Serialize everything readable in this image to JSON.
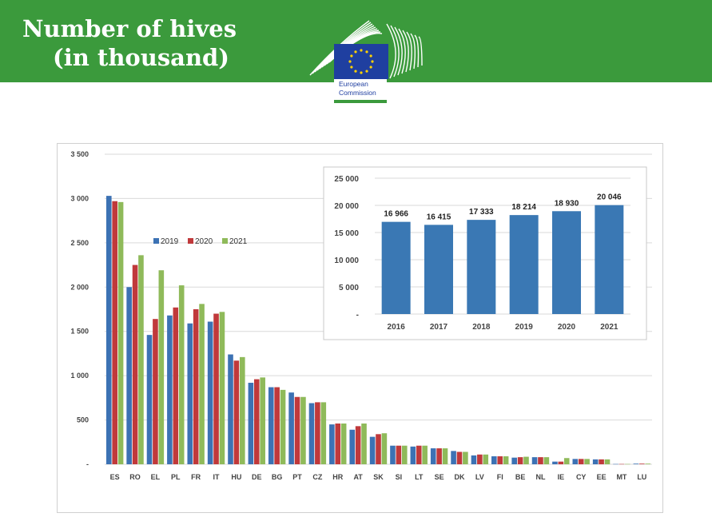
{
  "header": {
    "title_line1": "Number of hives",
    "title_line2": "(in thousand)",
    "logo_text_line1": "European",
    "logo_text_line2": "Commission"
  },
  "colors": {
    "banner": "#3b9a3c",
    "s2019": "#3c72b4",
    "s2020": "#c0393b",
    "s2021": "#8fba5a",
    "inset_bar": "#3a78b4",
    "eu_blue": "#1f3fa0",
    "eu_star": "#ffd200"
  },
  "chart_data": [
    {
      "type": "bar",
      "categories": [
        "ES",
        "RO",
        "EL",
        "PL",
        "FR",
        "IT",
        "HU",
        "DE",
        "BG",
        "PT",
        "CZ",
        "HR",
        "AT",
        "SK",
        "SI",
        "LT",
        "SE",
        "DK",
        "LV",
        "FI",
        "BE",
        "NL",
        "IE",
        "CY",
        "EE",
        "MT",
        "LU"
      ],
      "series": [
        {
          "name": "2019",
          "values": [
            3030,
            2000,
            1460,
            1680,
            1590,
            1610,
            1240,
            920,
            870,
            810,
            690,
            450,
            390,
            310,
            210,
            200,
            180,
            150,
            100,
            90,
            75,
            80,
            30,
            60,
            55,
            3,
            7
          ]
        },
        {
          "name": "2020",
          "values": [
            2970,
            2250,
            1640,
            1770,
            1750,
            1700,
            1170,
            960,
            870,
            760,
            700,
            460,
            430,
            340,
            210,
            210,
            180,
            140,
            110,
            90,
            80,
            80,
            30,
            60,
            55,
            3,
            7
          ]
        },
        {
          "name": "2021",
          "values": [
            2960,
            2360,
            2190,
            2020,
            1810,
            1720,
            1210,
            980,
            840,
            760,
            700,
            460,
            460,
            350,
            210,
            210,
            180,
            140,
            110,
            90,
            85,
            80,
            70,
            60,
            55,
            3,
            7
          ]
        }
      ],
      "y_ticks": [
        "-",
        "500",
        "1 000",
        "1 500",
        "2 000",
        "2 500",
        "3 000",
        "3 500"
      ],
      "ylim": [
        0,
        3500
      ],
      "grid": true,
      "legend": "upper-left"
    },
    {
      "type": "bar",
      "categories": [
        "2016",
        "2017",
        "2018",
        "2019",
        "2020",
        "2021"
      ],
      "values": [
        16966,
        16415,
        17333,
        18214,
        18930,
        20046
      ],
      "data_labels": [
        "16 966",
        "16 415",
        "17 333",
        "18 214",
        "18 930",
        "20 046"
      ],
      "y_ticks": [
        "-",
        "5 000",
        "10 000",
        "15 000",
        "20 000",
        "25 000"
      ],
      "ylim": [
        0,
        25000
      ],
      "grid": true
    }
  ]
}
